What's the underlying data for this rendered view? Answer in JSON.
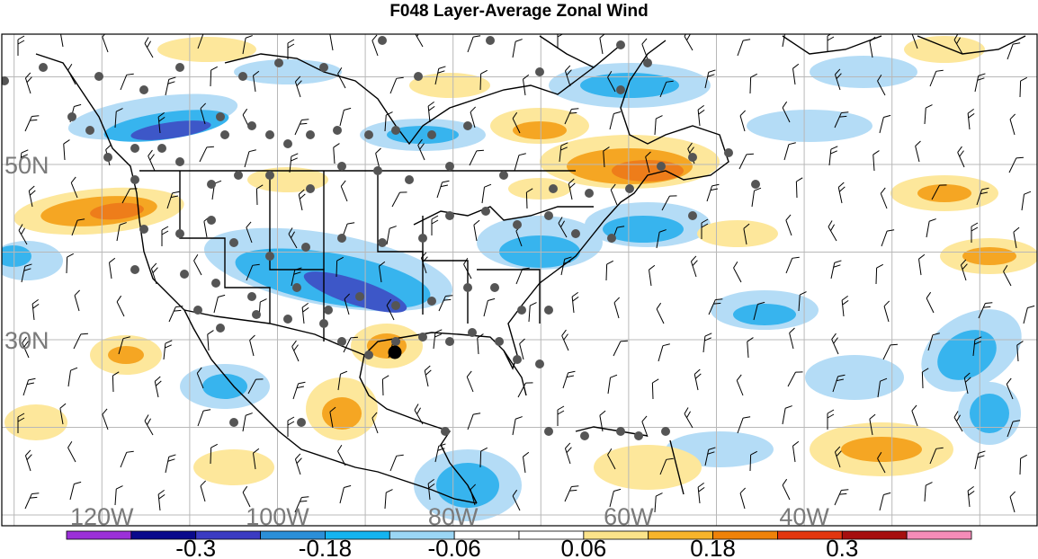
{
  "title": "F048 Layer-Average Zonal Wind",
  "lat_labels": [
    {
      "text": "50N",
      "lat": 50
    },
    {
      "text": "30N",
      "lat": 30
    }
  ],
  "lon_labels": [
    {
      "text": "120W",
      "lon": -120
    },
    {
      "text": "100W",
      "lon": -100
    },
    {
      "text": "80W",
      "lon": -80
    },
    {
      "text": "60W",
      "lon": -60
    },
    {
      "text": "40W",
      "lon": -40
    }
  ],
  "colorbar": {
    "colors": [
      "#9b30d8",
      "#0a0a8c",
      "#3b3bc2",
      "#2b8fd8",
      "#14b4f0",
      "#9bd6f5",
      "#ffffff",
      "#ffffff",
      "#fbe38a",
      "#f7b42b",
      "#ef8209",
      "#e2360f",
      "#a60f0f",
      "#f58cb8"
    ],
    "tick_labels": [
      {
        "text": "-0.3",
        "index": 2
      },
      {
        "text": "-0.18",
        "index": 4
      },
      {
        "text": "-0.06",
        "index": 6
      },
      {
        "text": "0.06",
        "index": 8
      },
      {
        "text": "0.18",
        "index": 10
      },
      {
        "text": "0.3",
        "index": 12
      }
    ]
  },
  "field_colors": {
    "neg_weak": "#b4dcf6",
    "neg_mod": "#37b4ee",
    "neg_strong": "#3d57c8",
    "neg_extreme": "#3939b4",
    "pos_weak": "#fde79b",
    "pos_mod": "#f5a623",
    "pos_strong": "#ee7d1a",
    "pos_extreme": "#d8341b"
  },
  "markers": {
    "station_color": "#555555",
    "highlight_color": "#000000"
  }
}
